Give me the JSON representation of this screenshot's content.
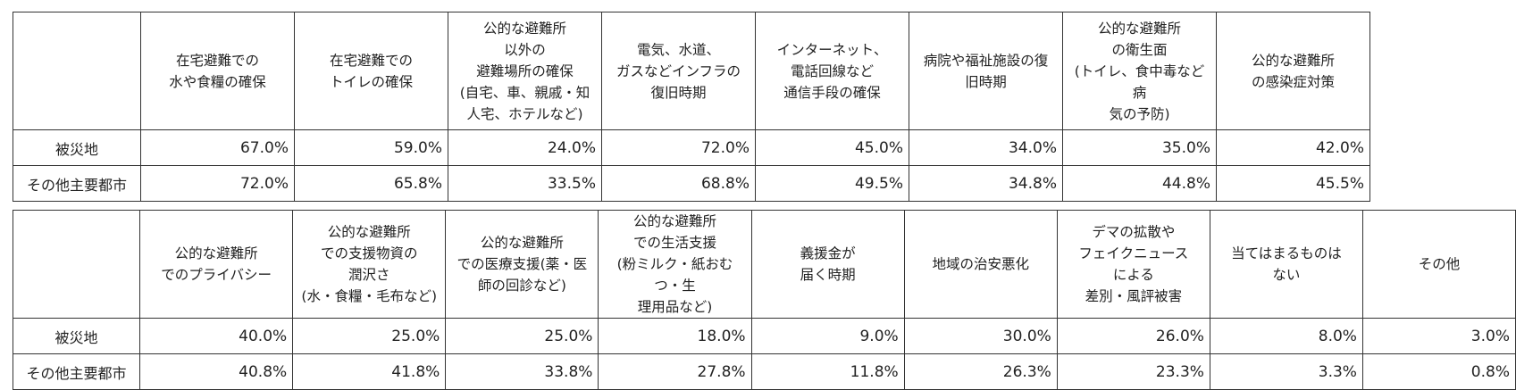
{
  "tables": [
    {
      "headers": [
        "",
        "在宅避難での\n水や食糧の確保",
        "在宅避難での\nトイレの確保",
        "公的な避難所\n以外の\n避難場所の確保\n(自宅、車、親戚・知\n人宅、ホテルなど)",
        "電気、水道、\nガスなどインフラの\n復旧時期",
        "インターネット、\n電話回線など\n通信手段の確保",
        "病院や福祉施設の復\n旧時期",
        "公的な避難所\nの衛生面\n(トイレ、食中毒など病\n気の予防)",
        "公的な避難所\nの感染症対策"
      ],
      "rows": [
        {
          "label": "被災地",
          "values": [
            "67.0%",
            "59.0%",
            "24.0%",
            "72.0%",
            "45.0%",
            "34.0%",
            "35.0%",
            "42.0%"
          ]
        },
        {
          "label": "その他主要都市",
          "values": [
            "72.0%",
            "65.8%",
            "33.5%",
            "68.8%",
            "49.5%",
            "34.8%",
            "44.8%",
            "45.5%"
          ]
        }
      ]
    },
    {
      "headers": [
        "",
        "公的な避難所\nでのプライバシー",
        "公的な避難所\nでの支援物資の\n潤沢さ\n(水・食糧・毛布など)",
        "公的な避難所\nでの医療支援(薬・医\n師の回診など)",
        "公的な避難所\nでの生活支援\n(粉ミルク・紙おむつ・生\n理用品など)",
        "義援金が\n届く時期",
        "地域の治安悪化",
        "デマの拡散や\nフェイクニュース\nによる\n差別・風評被害",
        "当てはまるものは\nない",
        "その他"
      ],
      "rows": [
        {
          "label": "被災地",
          "values": [
            "40.0%",
            "25.0%",
            "25.0%",
            "18.0%",
            "9.0%",
            "30.0%",
            "26.0%",
            "8.0%",
            "3.0%"
          ]
        },
        {
          "label": "その他主要都市",
          "values": [
            "40.8%",
            "41.8%",
            "33.8%",
            "27.8%",
            "11.8%",
            "26.3%",
            "23.3%",
            "3.3%",
            "0.8%"
          ]
        }
      ]
    }
  ]
}
